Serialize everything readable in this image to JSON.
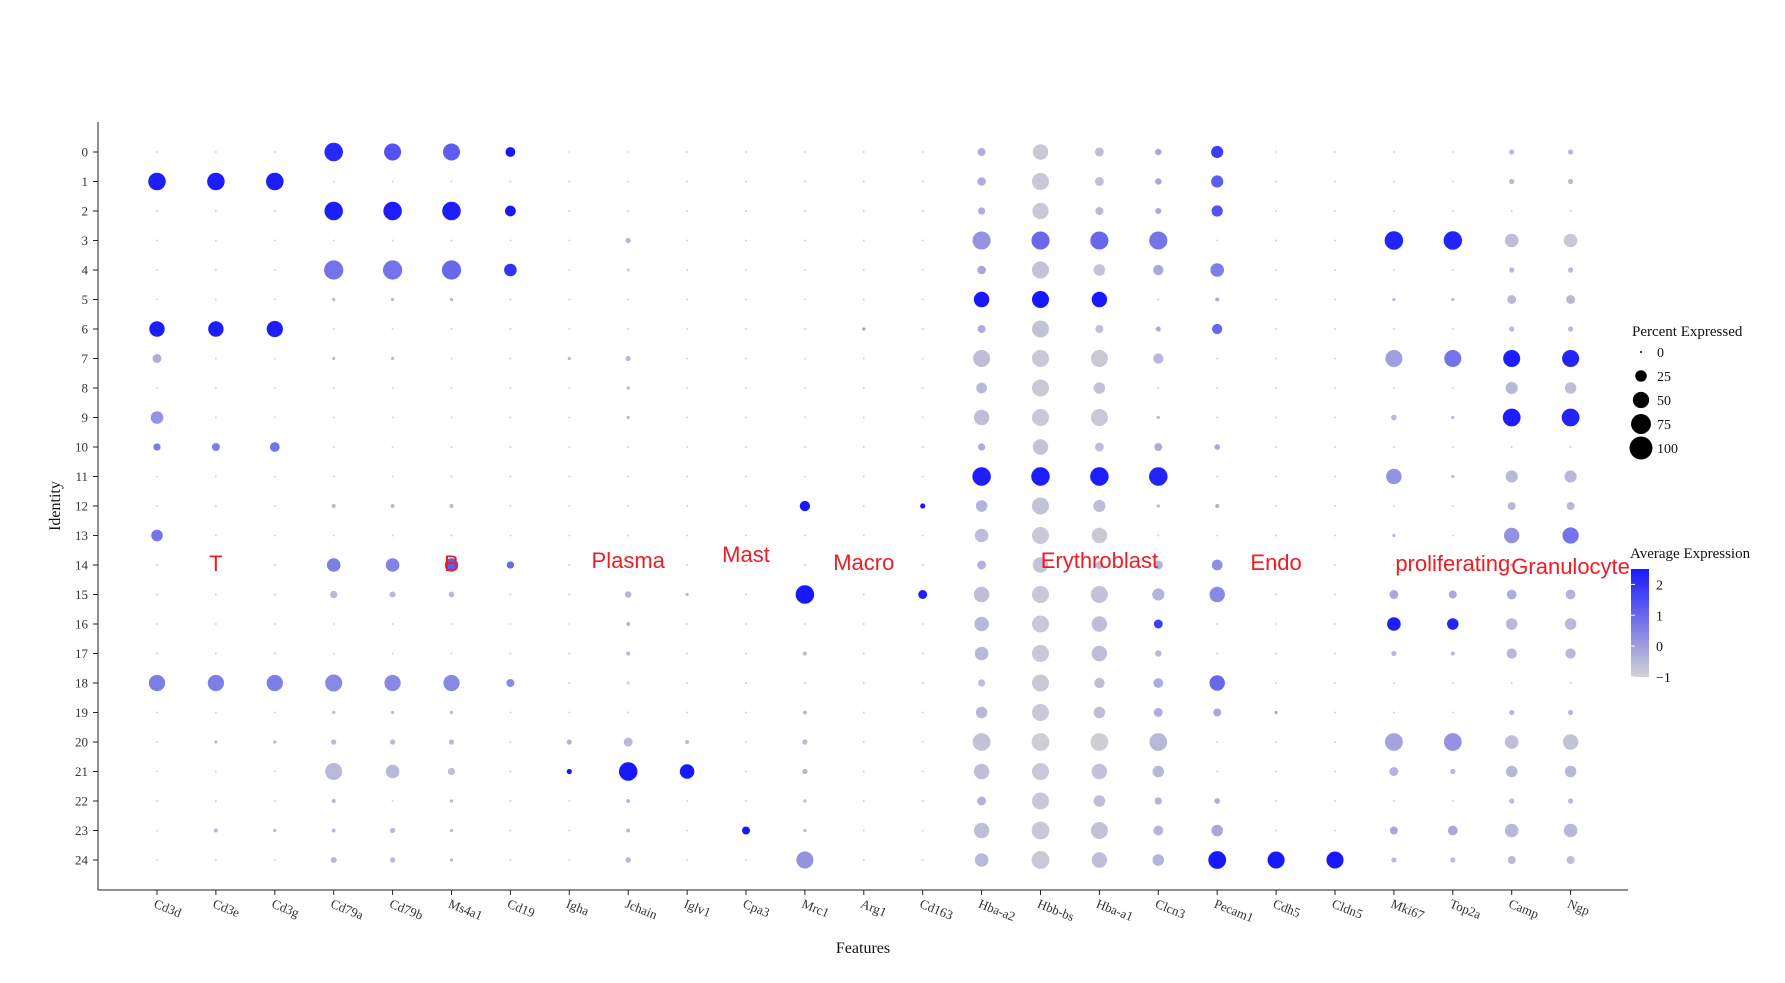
{
  "chart_data": {
    "type": "dotplot",
    "xlabel": "Features",
    "ylabel": "Identity",
    "features": [
      "Cd3d",
      "Cd3e",
      "Cd3g",
      "Cd79a",
      "Cd79b",
      "Ms4a1",
      "Cd19",
      "Igha",
      "Jchain",
      "Iglv1",
      "Cpa3",
      "Mrc1",
      "Arg1",
      "Cd163",
      "Hba-a2",
      "Hbb-bs",
      "Hba-a1",
      "Clcn3",
      "Pecam1",
      "Cdh5",
      "Cldn5",
      "Mki67",
      "Top2a",
      "Camp",
      "Ngp"
    ],
    "identities": [
      "0",
      "1",
      "2",
      "3",
      "4",
      "5",
      "6",
      "7",
      "8",
      "9",
      "10",
      "11",
      "12",
      "13",
      "14",
      "15",
      "16",
      "17",
      "18",
      "19",
      "20",
      "21",
      "22",
      "23",
      "24"
    ],
    "pct_expressed_by_identity": [
      [
        1,
        1,
        1,
        65,
        55,
        55,
        18,
        1,
        1,
        1,
        1,
        1,
        1,
        1,
        12,
        45,
        15,
        8,
        28,
        1,
        1,
        1,
        1,
        5,
        5
      ],
      [
        58,
        58,
        58,
        1,
        1,
        1,
        1,
        1,
        1,
        1,
        1,
        1,
        1,
        1,
        14,
        55,
        15,
        8,
        28,
        1,
        1,
        1,
        1,
        5,
        5
      ],
      [
        1,
        1,
        1,
        65,
        65,
        65,
        22,
        1,
        1,
        1,
        1,
        1,
        1,
        1,
        10,
        50,
        12,
        7,
        24,
        1,
        1,
        1,
        1,
        1,
        1
      ],
      [
        1,
        1,
        1,
        1,
        1,
        1,
        1,
        1,
        5,
        1,
        1,
        1,
        1,
        1,
        62,
        62,
        62,
        62,
        1,
        1,
        1,
        65,
        65,
        35,
        35
      ],
      [
        1,
        1,
        1,
        70,
        70,
        70,
        30,
        1,
        2,
        1,
        1,
        1,
        1,
        1,
        14,
        55,
        25,
        20,
        35,
        1,
        1,
        1,
        1,
        5,
        5
      ],
      [
        1,
        1,
        1,
        2,
        2,
        2,
        1,
        1,
        1,
        1,
        1,
        1,
        1,
        1,
        45,
        55,
        45,
        1,
        3,
        1,
        1,
        2,
        2,
        15,
        15
      ],
      [
        45,
        45,
        50,
        1,
        1,
        1,
        1,
        1,
        1,
        1,
        1,
        1,
        2,
        1,
        12,
        55,
        12,
        5,
        20,
        1,
        1,
        1,
        1,
        5,
        5
      ],
      [
        15,
        1,
        1,
        2,
        2,
        1,
        1,
        2,
        5,
        1,
        1,
        1,
        1,
        1,
        55,
        55,
        55,
        20,
        1,
        1,
        1,
        55,
        55,
        55,
        55
      ],
      [
        1,
        1,
        1,
        1,
        1,
        1,
        1,
        1,
        2,
        1,
        1,
        1,
        1,
        1,
        22,
        55,
        25,
        1,
        1,
        1,
        1,
        1,
        1,
        28,
        25
      ],
      [
        30,
        1,
        1,
        1,
        1,
        1,
        1,
        1,
        2,
        1,
        1,
        1,
        1,
        1,
        45,
        55,
        55,
        2,
        1,
        1,
        1,
        6,
        2,
        60,
        60
      ],
      [
        10,
        12,
        18,
        1,
        1,
        1,
        1,
        1,
        1,
        1,
        1,
        1,
        1,
        1,
        10,
        45,
        15,
        12,
        6,
        1,
        1,
        1,
        1,
        1,
        1
      ],
      [
        1,
        1,
        1,
        1,
        1,
        1,
        1,
        1,
        1,
        1,
        1,
        1,
        1,
        1,
        65,
        65,
        65,
        65,
        1,
        1,
        1,
        45,
        2,
        28,
        28
      ],
      [
        1,
        1,
        1,
        3,
        3,
        3,
        1,
        1,
        1,
        1,
        1,
        20,
        1,
        5,
        25,
        55,
        28,
        2,
        3,
        1,
        1,
        1,
        1,
        12,
        12
      ],
      [
        25,
        1,
        1,
        1,
        1,
        1,
        1,
        1,
        1,
        1,
        1,
        1,
        1,
        1,
        35,
        55,
        45,
        1,
        1,
        1,
        1,
        2,
        1,
        45,
        50
      ],
      [
        1,
        1,
        1,
        35,
        35,
        35,
        10,
        1,
        1,
        1,
        1,
        1,
        1,
        1,
        15,
        45,
        12,
        15,
        22,
        1,
        1,
        1,
        1,
        2,
        2
      ],
      [
        1,
        1,
        1,
        10,
        7,
        6,
        1,
        1,
        8,
        2,
        1,
        65,
        1,
        15,
        45,
        55,
        55,
        28,
        45,
        1,
        1,
        15,
        12,
        18,
        18
      ],
      [
        1,
        1,
        1,
        1,
        1,
        1,
        1,
        1,
        3,
        1,
        1,
        1,
        1,
        1,
        40,
        55,
        45,
        15,
        1,
        1,
        1,
        35,
        25,
        25,
        25
      ],
      [
        1,
        1,
        1,
        1,
        1,
        1,
        1,
        1,
        3,
        1,
        1,
        3,
        1,
        1,
        35,
        55,
        45,
        8,
        1,
        1,
        1,
        5,
        3,
        20,
        20
      ],
      [
        50,
        50,
        50,
        55,
        50,
        50,
        12,
        1,
        2,
        1,
        1,
        1,
        1,
        1,
        10,
        55,
        20,
        18,
        45,
        1,
        1,
        1,
        1,
        1,
        1
      ],
      [
        1,
        1,
        1,
        2,
        2,
        2,
        1,
        1,
        1,
        1,
        1,
        3,
        1,
        1,
        25,
        55,
        25,
        15,
        12,
        2,
        1,
        1,
        1,
        5,
        5
      ],
      [
        1,
        2,
        2,
        5,
        5,
        5,
        1,
        5,
        15,
        3,
        1,
        5,
        1,
        1,
        60,
        60,
        60,
        60,
        1,
        1,
        1,
        60,
        60,
        35,
        45
      ],
      [
        1,
        1,
        1,
        55,
        35,
        10,
        1,
        5,
        65,
        40,
        1,
        5,
        1,
        1,
        45,
        55,
        45,
        25,
        1,
        1,
        1,
        15,
        5,
        25,
        25
      ],
      [
        1,
        1,
        1,
        3,
        1,
        2,
        1,
        1,
        3,
        1,
        1,
        2,
        1,
        1,
        15,
        55,
        25,
        10,
        6,
        1,
        1,
        1,
        1,
        5,
        5
      ],
      [
        1,
        3,
        2,
        3,
        5,
        2,
        1,
        1,
        3,
        1,
        12,
        2,
        1,
        1,
        45,
        60,
        55,
        18,
        25,
        1,
        1,
        12,
        18,
        35,
        35
      ],
      [
        1,
        1,
        1,
        7,
        5,
        2,
        1,
        1,
        6,
        1,
        1,
        55,
        1,
        1,
        35,
        60,
        45,
        25,
        60,
        55,
        55,
        5,
        5,
        12,
        12
      ]
    ],
    "avg_expression_by_identity": [
      [
        -1,
        -1,
        -1,
        2.2,
        1.4,
        1.2,
        2.5,
        -1,
        -1,
        -1,
        -1,
        -1,
        -1,
        -1,
        -0.3,
        -0.8,
        -0.6,
        -0.2,
        1.8,
        -1,
        -1,
        -1,
        -1,
        -0.5,
        -0.5
      ],
      [
        2.4,
        2.4,
        2.4,
        -1,
        -1,
        -1,
        -1,
        -1,
        -1,
        -1,
        -1,
        -1,
        -1,
        -1,
        -0.3,
        -0.8,
        -0.6,
        -0.2,
        1.2,
        -1,
        -1,
        -1,
        -1,
        -0.5,
        -0.5
      ],
      [
        -1,
        -1,
        -1,
        2.4,
        2.4,
        2.4,
        2.5,
        -1,
        -1,
        -1,
        -1,
        -1,
        -1,
        -1,
        -0.3,
        -0.8,
        -0.5,
        -0.2,
        1.4,
        -1,
        -1,
        -1,
        -1,
        -1,
        -1
      ],
      [
        -1,
        -1,
        -1,
        -1,
        -1,
        -1,
        -1,
        -1,
        -0.5,
        -1,
        -1,
        -1,
        -1,
        -1,
        0.2,
        1.0,
        1.0,
        0.8,
        -1,
        -1,
        -1,
        2.3,
        2.3,
        -0.6,
        -0.8
      ],
      [
        -1,
        -1,
        -1,
        0.8,
        0.8,
        1.0,
        2.0,
        -1,
        -1,
        -1,
        -1,
        -1,
        -1,
        -1,
        -0.2,
        -0.7,
        -0.7,
        -0.2,
        0.6,
        -1,
        -1,
        -1,
        -1,
        -0.5,
        -0.5
      ],
      [
        -1,
        -1,
        -1,
        -0.5,
        -0.5,
        -0.5,
        -1,
        -1,
        -1,
        -1,
        -1,
        -1,
        -1,
        -1,
        2.5,
        2.5,
        2.5,
        -1,
        -0.3,
        -1,
        -1,
        -0.5,
        -0.5,
        -0.5,
        -0.5
      ],
      [
        2.4,
        2.4,
        2.4,
        -1,
        -1,
        -1,
        -1,
        -1,
        -1,
        -1,
        -1,
        -1,
        0,
        -1,
        -0.3,
        -0.7,
        -0.6,
        -0.3,
        1.0,
        -1,
        -1,
        -1,
        -1,
        -0.5,
        -0.5
      ],
      [
        -0.3,
        -1,
        -1,
        -0.5,
        -0.5,
        -1,
        -1,
        -0.5,
        -0.5,
        -1,
        -1,
        -1,
        -1,
        -1,
        -0.6,
        -0.8,
        -0.8,
        -0.5,
        -1,
        -1,
        -1,
        0.0,
        0.8,
        2.4,
        2.3
      ],
      [
        -1,
        -1,
        -1,
        -1,
        -1,
        -1,
        -1,
        -1,
        -0.5,
        -1,
        -1,
        -1,
        -1,
        -1,
        -0.5,
        -0.8,
        -0.7,
        -1,
        -1,
        -1,
        -1,
        -1,
        -1,
        -0.5,
        -0.6
      ],
      [
        0.2,
        -1,
        -1,
        -1,
        -1,
        -1,
        -1,
        -1,
        -0.5,
        -1,
        -1,
        -1,
        -1,
        -1,
        -0.6,
        -0.8,
        -0.8,
        -0.5,
        -1,
        -1,
        -1,
        -0.5,
        -0.5,
        2.4,
        2.3
      ],
      [
        0.6,
        0.6,
        0.8,
        -1,
        -1,
        -1,
        -1,
        -1,
        -1,
        -1,
        -1,
        -1,
        -1,
        -1,
        -0.3,
        -0.7,
        -0.6,
        -0.3,
        -0.2,
        -1,
        -1,
        -1,
        -1,
        -1,
        -1
      ],
      [
        -1,
        -1,
        -1,
        -1,
        -1,
        -1,
        -1,
        -1,
        -1,
        -1,
        -1,
        -1,
        -1,
        -1,
        2.4,
        2.4,
        2.4,
        2.3,
        -1,
        -1,
        -1,
        0.2,
        -0.5,
        -0.5,
        -0.5
      ],
      [
        -1,
        -1,
        -1,
        -0.5,
        -0.5,
        -0.5,
        -1,
        -1,
        -1,
        -1,
        -1,
        2.5,
        -1,
        2.5,
        -0.4,
        -0.7,
        -0.6,
        -0.5,
        -0.3,
        -1,
        -1,
        -1,
        -1,
        -0.5,
        -0.5
      ],
      [
        0.8,
        -1,
        -1,
        -1,
        -1,
        -1,
        -1,
        -1,
        -1,
        -1,
        -1,
        -1,
        -1,
        -1,
        -0.6,
        -0.8,
        -0.8,
        -1,
        -1,
        -1,
        -1,
        -0.5,
        -1,
        0.2,
        0.8
      ],
      [
        -1,
        -1,
        -1,
        0.6,
        0.5,
        1.2,
        1.0,
        -1,
        -1,
        -1,
        -1,
        -1,
        -1,
        -1,
        -0.4,
        -0.7,
        -0.6,
        -0.4,
        0.3,
        -1,
        -1,
        -1,
        -1,
        -0.5,
        -0.5
      ],
      [
        -1,
        -1,
        -1,
        -0.5,
        -0.5,
        -0.5,
        -1,
        -1,
        -0.4,
        -0.5,
        -1,
        2.5,
        -1,
        2.4,
        -0.6,
        -0.8,
        -0.7,
        -0.4,
        0.4,
        -1,
        -1,
        -0.2,
        -0.2,
        -0.3,
        -0.4
      ],
      [
        -1,
        -1,
        -1,
        -1,
        -1,
        -1,
        -1,
        -1,
        -0.5,
        -1,
        -1,
        -1,
        -1,
        -1,
        -0.5,
        -0.8,
        -0.6,
        1.8,
        -1,
        -1,
        -1,
        2.4,
        2.3,
        -0.5,
        -0.5
      ],
      [
        -1,
        -1,
        -1,
        -1,
        -1,
        -1,
        -1,
        -1,
        -0.5,
        -1,
        -1,
        -0.5,
        -1,
        -1,
        -0.5,
        -0.8,
        -0.6,
        -0.5,
        -1,
        -1,
        -1,
        -0.5,
        -0.5,
        -0.5,
        -0.5
      ],
      [
        0.6,
        0.6,
        0.6,
        0.4,
        0.4,
        0.4,
        0.4,
        -1,
        -1,
        -1,
        -1,
        -1,
        -1,
        -1,
        -0.6,
        -0.8,
        -0.6,
        -0.3,
        1.0,
        -1,
        -1,
        -1,
        -1,
        -1,
        -1
      ],
      [
        -1,
        -1,
        -1,
        -0.5,
        -0.5,
        -0.5,
        -1,
        -1,
        -1,
        -1,
        -1,
        -0.5,
        -1,
        -1,
        -0.5,
        -0.8,
        -0.6,
        -0.3,
        -0.2,
        -0.2,
        -1,
        -1,
        -1,
        -0.5,
        -0.5
      ],
      [
        -1,
        -0.5,
        -0.5,
        -0.5,
        -0.5,
        -0.5,
        -1,
        -0.4,
        -0.5,
        -0.5,
        -1,
        -0.5,
        -1,
        -1,
        -0.7,
        -0.9,
        -0.9,
        -0.5,
        -1,
        -1,
        -1,
        -0.1,
        0.2,
        -0.6,
        -0.7
      ],
      [
        -1,
        -1,
        -1,
        -0.5,
        -0.5,
        -0.6,
        -1,
        2.5,
        2.5,
        2.5,
        -1,
        -0.5,
        -1,
        -1,
        -0.6,
        -0.8,
        -0.7,
        -0.5,
        -1,
        -1,
        -1,
        -0.4,
        -0.5,
        -0.5,
        -0.5
      ],
      [
        -1,
        -1,
        -1,
        -0.5,
        -1,
        -0.5,
        -1,
        -1,
        -0.5,
        -1,
        -1,
        -0.5,
        -1,
        -1,
        -0.4,
        -0.8,
        -0.6,
        -0.4,
        -0.3,
        -1,
        -1,
        -1,
        -1,
        -0.5,
        -0.5
      ],
      [
        -1,
        -0.5,
        -0.5,
        -0.5,
        -0.5,
        -0.5,
        -1,
        -1,
        -0.5,
        -1,
        2.5,
        -0.5,
        -1,
        -1,
        -0.6,
        -0.8,
        -0.7,
        -0.4,
        -0.2,
        -1,
        -1,
        -0.2,
        -0.2,
        -0.5,
        -0.5
      ],
      [
        -1,
        -1,
        -1,
        -0.5,
        -0.5,
        -0.5,
        -1,
        -1,
        -0.5,
        -1,
        -1,
        0.2,
        -1,
        -1,
        -0.5,
        -0.8,
        -0.6,
        -0.4,
        2.5,
        2.5,
        2.5,
        -0.5,
        -0.5,
        -0.5,
        -0.6
      ]
    ],
    "cell_type_labels": [
      {
        "text": "T",
        "feature": "Cd3e"
      },
      {
        "text": "B",
        "feature": "Ms4a1"
      },
      {
        "text": "Plasma",
        "feature": "Jchain"
      },
      {
        "text": "Mast",
        "feature": "Cpa3"
      },
      {
        "text": "Macro",
        "feature": "Arg1"
      },
      {
        "text": "Erythroblast",
        "feature": "Hba-a1"
      },
      {
        "text": "Endo",
        "feature": "Cdh5"
      },
      {
        "text": "proliferating",
        "feature": "Top2a"
      },
      {
        "text": "Granulocyte",
        "feature": "Ngp"
      }
    ],
    "size_legend": {
      "title": "Percent Expressed",
      "breaks": [
        0,
        25,
        50,
        75,
        100
      ],
      "labels": [
        "0",
        "25",
        "50",
        "75",
        "100"
      ]
    },
    "color_legend": {
      "title": "Average Expression",
      "breaks": [
        2,
        1,
        0,
        -1
      ],
      "labels": [
        "2",
        "1",
        "0",
        "−1"
      ],
      "low_color": "#d3d3d3",
      "high_color": "#1818ff",
      "limits": [
        -1,
        2.5
      ]
    }
  }
}
